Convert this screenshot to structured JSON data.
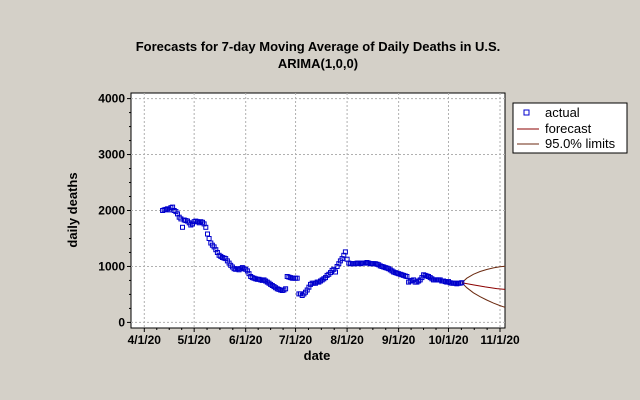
{
  "chart_data": {
    "type": "line",
    "title": "Forecasts for 7-day Moving Average of Daily Deaths in U.S.",
    "subtitle": "ARIMA(1,0,0)",
    "xlabel": "date",
    "ylabel": "daily deaths",
    "x_ticks": [
      "4/1/20",
      "5/1/20",
      "6/1/20",
      "7/1/20",
      "8/1/20",
      "9/1/20",
      "10/1/20",
      "11/1/20"
    ],
    "y_ticks": [
      0,
      1000,
      2000,
      3000,
      4000
    ],
    "xlim": [
      "3/24/20",
      "11/4/20"
    ],
    "ylim": [
      -100,
      4100
    ],
    "grid": true,
    "legend_position": "right",
    "legend": [
      "actual",
      "forecast",
      "95.0% limits"
    ],
    "colors": {
      "actual": "#0000cc",
      "forecast": "#8b0000",
      "limits": "#6b2a10",
      "background": "#d4d0c8",
      "plot_background": "#ffffff",
      "grid": "#b0b0b0"
    },
    "series": [
      {
        "name": "actual",
        "kind": "points",
        "points": [
          [
            "4/12/20",
            2000
          ],
          [
            "4/13/20",
            2010
          ],
          [
            "4/14/20",
            2020
          ],
          [
            "4/15/20",
            2030
          ],
          [
            "4/16/20",
            2010
          ],
          [
            "4/17/20",
            2050
          ],
          [
            "4/18/20",
            2060
          ],
          [
            "4/19/20",
            2000
          ],
          [
            "4/20/20",
            1980
          ],
          [
            "4/21/20",
            1940
          ],
          [
            "4/22/20",
            1880
          ],
          [
            "4/23/20",
            1850
          ],
          [
            "4/24/20",
            1700
          ],
          [
            "4/25/20",
            1830
          ],
          [
            "4/26/20",
            1820
          ],
          [
            "4/27/20",
            1810
          ],
          [
            "4/28/20",
            1780
          ],
          [
            "4/29/20",
            1740
          ],
          [
            "4/30/20",
            1760
          ],
          [
            "5/1/20",
            1800
          ],
          [
            "5/2/20",
            1810
          ],
          [
            "5/3/20",
            1800
          ],
          [
            "5/4/20",
            1780
          ],
          [
            "5/5/20",
            1800
          ],
          [
            "5/6/20",
            1790
          ],
          [
            "5/7/20",
            1760
          ],
          [
            "5/8/20",
            1700
          ],
          [
            "5/9/20",
            1580
          ],
          [
            "5/10/20",
            1500
          ],
          [
            "5/11/20",
            1420
          ],
          [
            "5/12/20",
            1380
          ],
          [
            "5/13/20",
            1350
          ],
          [
            "5/14/20",
            1300
          ],
          [
            "5/15/20",
            1250
          ],
          [
            "5/16/20",
            1200
          ],
          [
            "5/17/20",
            1180
          ],
          [
            "5/18/20",
            1160
          ],
          [
            "5/19/20",
            1150
          ],
          [
            "5/20/20",
            1140
          ],
          [
            "5/21/20",
            1100
          ],
          [
            "5/22/20",
            1060
          ],
          [
            "5/23/20",
            1020
          ],
          [
            "5/24/20",
            990
          ],
          [
            "5/25/20",
            960
          ],
          [
            "5/26/20",
            950
          ],
          [
            "5/27/20",
            960
          ],
          [
            "5/28/20",
            940
          ],
          [
            "5/29/20",
            960
          ],
          [
            "5/30/20",
            980
          ],
          [
            "5/31/20",
            960
          ],
          [
            "6/1/20",
            950
          ],
          [
            "6/2/20",
            920
          ],
          [
            "6/3/20",
            870
          ],
          [
            "6/4/20",
            820
          ],
          [
            "6/5/20",
            800
          ],
          [
            "6/6/20",
            790
          ],
          [
            "6/7/20",
            780
          ],
          [
            "6/8/20",
            770
          ],
          [
            "6/9/20",
            770
          ],
          [
            "6/10/20",
            760
          ],
          [
            "6/11/20",
            750
          ],
          [
            "6/12/20",
            760
          ],
          [
            "6/13/20",
            740
          ],
          [
            "6/14/20",
            720
          ],
          [
            "6/15/20",
            700
          ],
          [
            "6/16/20",
            680
          ],
          [
            "6/17/20",
            660
          ],
          [
            "6/18/20",
            640
          ],
          [
            "6/19/20",
            620
          ],
          [
            "6/20/20",
            600
          ],
          [
            "6/21/20",
            590
          ],
          [
            "6/22/20",
            580
          ],
          [
            "6/23/20",
            570
          ],
          [
            "6/24/20",
            580
          ],
          [
            "6/25/20",
            600
          ],
          [
            "6/26/20",
            820
          ],
          [
            "6/27/20",
            810
          ],
          [
            "6/28/20",
            800
          ],
          [
            "6/29/20",
            790
          ],
          [
            "6/30/20",
            790
          ],
          [
            "7/1/20",
            790
          ],
          [
            "7/2/20",
            790
          ],
          [
            "7/3/20",
            510
          ],
          [
            "7/4/20",
            510
          ],
          [
            "7/5/20",
            480
          ],
          [
            "7/6/20",
            510
          ],
          [
            "7/7/20",
            540
          ],
          [
            "7/8/20",
            580
          ],
          [
            "7/9/20",
            630
          ],
          [
            "7/10/20",
            680
          ],
          [
            "7/11/20",
            700
          ],
          [
            "7/12/20",
            700
          ],
          [
            "7/13/20",
            700
          ],
          [
            "7/14/20",
            720
          ],
          [
            "7/15/20",
            720
          ],
          [
            "7/16/20",
            740
          ],
          [
            "7/17/20",
            760
          ],
          [
            "7/18/20",
            780
          ],
          [
            "7/19/20",
            800
          ],
          [
            "7/20/20",
            840
          ],
          [
            "7/21/20",
            860
          ],
          [
            "7/22/20",
            890
          ],
          [
            "7/23/20",
            930
          ],
          [
            "7/24/20",
            950
          ],
          [
            "7/25/20",
            900
          ],
          [
            "7/26/20",
            1000
          ],
          [
            "7/27/20",
            1050
          ],
          [
            "7/28/20",
            1100
          ],
          [
            "7/29/20",
            1140
          ],
          [
            "7/30/20",
            1200
          ],
          [
            "7/31/20",
            1260
          ],
          [
            "8/1/20",
            1130
          ],
          [
            "8/2/20",
            1060
          ],
          [
            "8/3/20",
            1050
          ],
          [
            "8/4/20",
            1050
          ],
          [
            "8/5/20",
            1050
          ],
          [
            "8/6/20",
            1050
          ],
          [
            "8/7/20",
            1060
          ],
          [
            "8/8/20",
            1060
          ],
          [
            "8/9/20",
            1050
          ],
          [
            "8/10/20",
            1060
          ],
          [
            "8/11/20",
            1060
          ],
          [
            "8/12/20",
            1060
          ],
          [
            "8/13/20",
            1070
          ],
          [
            "8/14/20",
            1060
          ],
          [
            "8/15/20",
            1050
          ],
          [
            "8/16/20",
            1050
          ],
          [
            "8/17/20",
            1050
          ],
          [
            "8/18/20",
            1050
          ],
          [
            "8/19/20",
            1040
          ],
          [
            "8/20/20",
            1030
          ],
          [
            "8/21/20",
            1010
          ],
          [
            "8/22/20",
            1000
          ],
          [
            "8/23/20",
            990
          ],
          [
            "8/24/20",
            980
          ],
          [
            "8/25/20",
            970
          ],
          [
            "8/26/20",
            960
          ],
          [
            "8/27/20",
            940
          ],
          [
            "8/28/20",
            920
          ],
          [
            "8/29/20",
            900
          ],
          [
            "8/30/20",
            890
          ],
          [
            "8/31/20",
            880
          ],
          [
            "9/1/20",
            870
          ],
          [
            "9/2/20",
            860
          ],
          [
            "9/3/20",
            850
          ],
          [
            "9/4/20",
            840
          ],
          [
            "9/5/20",
            830
          ],
          [
            "9/6/20",
            820
          ],
          [
            "9/7/20",
            720
          ],
          [
            "9/8/20",
            740
          ],
          [
            "9/9/20",
            750
          ],
          [
            "9/10/20",
            760
          ],
          [
            "9/11/20",
            720
          ],
          [
            "9/12/20",
            720
          ],
          [
            "9/13/20",
            740
          ],
          [
            "9/14/20",
            760
          ],
          [
            "9/15/20",
            800
          ],
          [
            "9/16/20",
            850
          ],
          [
            "9/17/20",
            840
          ],
          [
            "9/18/20",
            830
          ],
          [
            "9/19/20",
            820
          ],
          [
            "9/20/20",
            800
          ],
          [
            "9/21/20",
            780
          ],
          [
            "9/22/20",
            760
          ],
          [
            "9/23/20",
            760
          ],
          [
            "9/24/20",
            760
          ],
          [
            "9/25/20",
            760
          ],
          [
            "9/26/20",
            760
          ],
          [
            "9/27/20",
            740
          ],
          [
            "9/28/20",
            740
          ],
          [
            "9/29/20",
            730
          ],
          [
            "9/30/20",
            720
          ],
          [
            "10/1/20",
            730
          ],
          [
            "10/2/20",
            710
          ],
          [
            "10/3/20",
            700
          ],
          [
            "10/4/20",
            700
          ],
          [
            "10/5/20",
            700
          ],
          [
            "10/6/20",
            690
          ],
          [
            "10/7/20",
            700
          ],
          [
            "10/8/20",
            700
          ],
          [
            "10/9/20",
            710
          ]
        ]
      },
      {
        "name": "forecast",
        "kind": "line",
        "points": [
          [
            "10/9/20",
            710
          ],
          [
            "10/16/20",
            670
          ],
          [
            "10/23/20",
            635
          ],
          [
            "10/30/20",
            605
          ],
          [
            "11/4/20",
            590
          ]
        ]
      },
      {
        "name": "95.0% limits",
        "kind": "line",
        "points": [
          [
            "10/9/20",
            710
          ],
          [
            "10/12/20",
            790
          ],
          [
            "10/16/20",
            860
          ],
          [
            "10/20/20",
            910
          ],
          [
            "10/24/20",
            945
          ],
          [
            "10/28/20",
            975
          ],
          [
            "11/1/20",
            995
          ],
          [
            "11/4/20",
            1005
          ]
        ]
      },
      {
        "name": "95.0% limits",
        "kind": "line",
        "points": [
          [
            "10/9/20",
            710
          ],
          [
            "10/12/20",
            620
          ],
          [
            "10/16/20",
            530
          ],
          [
            "10/20/20",
            460
          ],
          [
            "10/24/20",
            400
          ],
          [
            "10/28/20",
            345
          ],
          [
            "11/1/20",
            300
          ],
          [
            "11/4/20",
            270
          ]
        ]
      }
    ]
  }
}
